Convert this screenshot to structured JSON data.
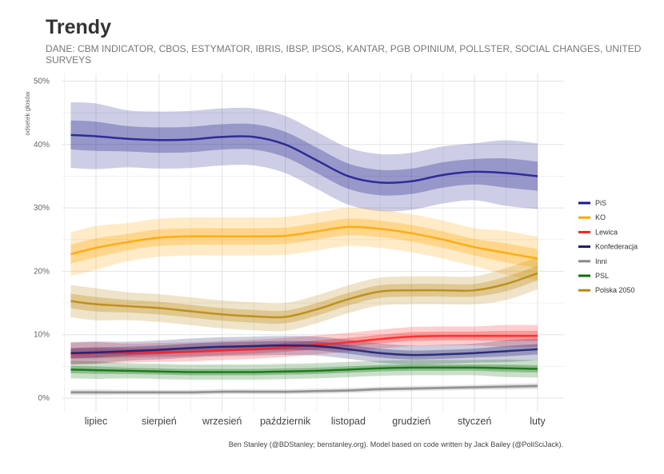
{
  "header": {
    "title": "Trendy",
    "subtitle": "DANE: CBM INDICATOR, CBOS, ESTYMATOR, IBRIS, IBSP, IPSOS, KANTAR, PGB OPINIUM, POLLSTER, SOCIAL CHANGES, UNITED SURVEYS"
  },
  "caption": "Ben Stanley (@BDStanley; benstanley.org). Model based on code written by Jack Bailey (@PoliSciJack).",
  "chart_data": {
    "type": "line",
    "title": "Trendy",
    "xlabel": "",
    "ylabel": "odsetek głosów",
    "ylim": [
      0,
      50
    ],
    "xlim": [
      -0.55,
      7.4
    ],
    "y_ticks": [
      0,
      10,
      20,
      30,
      40,
      50
    ],
    "y_tick_labels": [
      "0%",
      "10%",
      "20%",
      "30%",
      "40%",
      "50%"
    ],
    "x_ticks": [
      0,
      1,
      2,
      3,
      4,
      5,
      6,
      7
    ],
    "x_tick_labels": [
      "lipiec",
      "sierpień",
      "wrzesień",
      "październik",
      "listopad",
      "grudzień",
      "styczeń",
      "luty"
    ],
    "grid": true,
    "legend_position": "right",
    "x": [
      -0.4,
      0,
      0.5,
      1,
      1.5,
      2,
      2.5,
      3,
      3.5,
      4,
      4.5,
      5,
      5.5,
      6,
      6.5,
      7
    ],
    "series": [
      {
        "name": "PiS",
        "color": "#1a1a8c",
        "band": [
          4.5,
          2.0
        ],
        "values": [
          41.5,
          41.3,
          40.9,
          40.7,
          40.8,
          41.2,
          41.2,
          40.0,
          37.5,
          35.0,
          34.0,
          34.2,
          35.2,
          35.7,
          35.5,
          35.0
        ]
      },
      {
        "name": "KO",
        "color": "#ffa500",
        "band": [
          3.0,
          1.3
        ],
        "values": [
          22.7,
          23.7,
          24.6,
          25.3,
          25.5,
          25.5,
          25.5,
          25.6,
          26.3,
          27.0,
          26.7,
          26.0,
          25.0,
          23.8,
          22.9,
          22.0
        ]
      },
      {
        "name": "Lewica",
        "color": "#ff2020",
        "band": [
          1.5,
          0.7
        ],
        "values": [
          7.0,
          7.1,
          7.1,
          7.2,
          7.3,
          7.5,
          7.7,
          8.0,
          8.4,
          8.8,
          9.3,
          9.7,
          9.8,
          9.8,
          9.8,
          9.8
        ]
      },
      {
        "name": "Konfederacja",
        "color": "#1a1a6e",
        "band": [
          1.5,
          0.7
        ],
        "values": [
          7.1,
          7.2,
          7.4,
          7.6,
          7.9,
          8.1,
          8.2,
          8.3,
          8.2,
          7.7,
          7.1,
          6.8,
          6.9,
          7.1,
          7.4,
          7.7
        ]
      },
      {
        "name": "Inni",
        "color": "#888888",
        "band": [
          0.4,
          0.2
        ],
        "values": [
          0.9,
          0.9,
          0.9,
          0.9,
          0.9,
          1.0,
          1.0,
          1.0,
          1.1,
          1.2,
          1.4,
          1.5,
          1.6,
          1.7,
          1.8,
          1.9
        ]
      },
      {
        "name": "PSL",
        "color": "#0a6e0a",
        "band": [
          1.2,
          0.5
        ],
        "values": [
          4.5,
          4.4,
          4.3,
          4.2,
          4.1,
          4.1,
          4.1,
          4.2,
          4.3,
          4.5,
          4.7,
          4.8,
          4.8,
          4.8,
          4.7,
          4.6
        ]
      },
      {
        "name": "Polska 2050",
        "color": "#b8860b",
        "band": [
          2.2,
          1.0
        ],
        "values": [
          15.3,
          14.8,
          14.5,
          14.2,
          13.7,
          13.2,
          12.9,
          12.8,
          14.0,
          15.6,
          16.8,
          17.0,
          17.0,
          17.0,
          18.0,
          19.7
        ]
      }
    ]
  }
}
